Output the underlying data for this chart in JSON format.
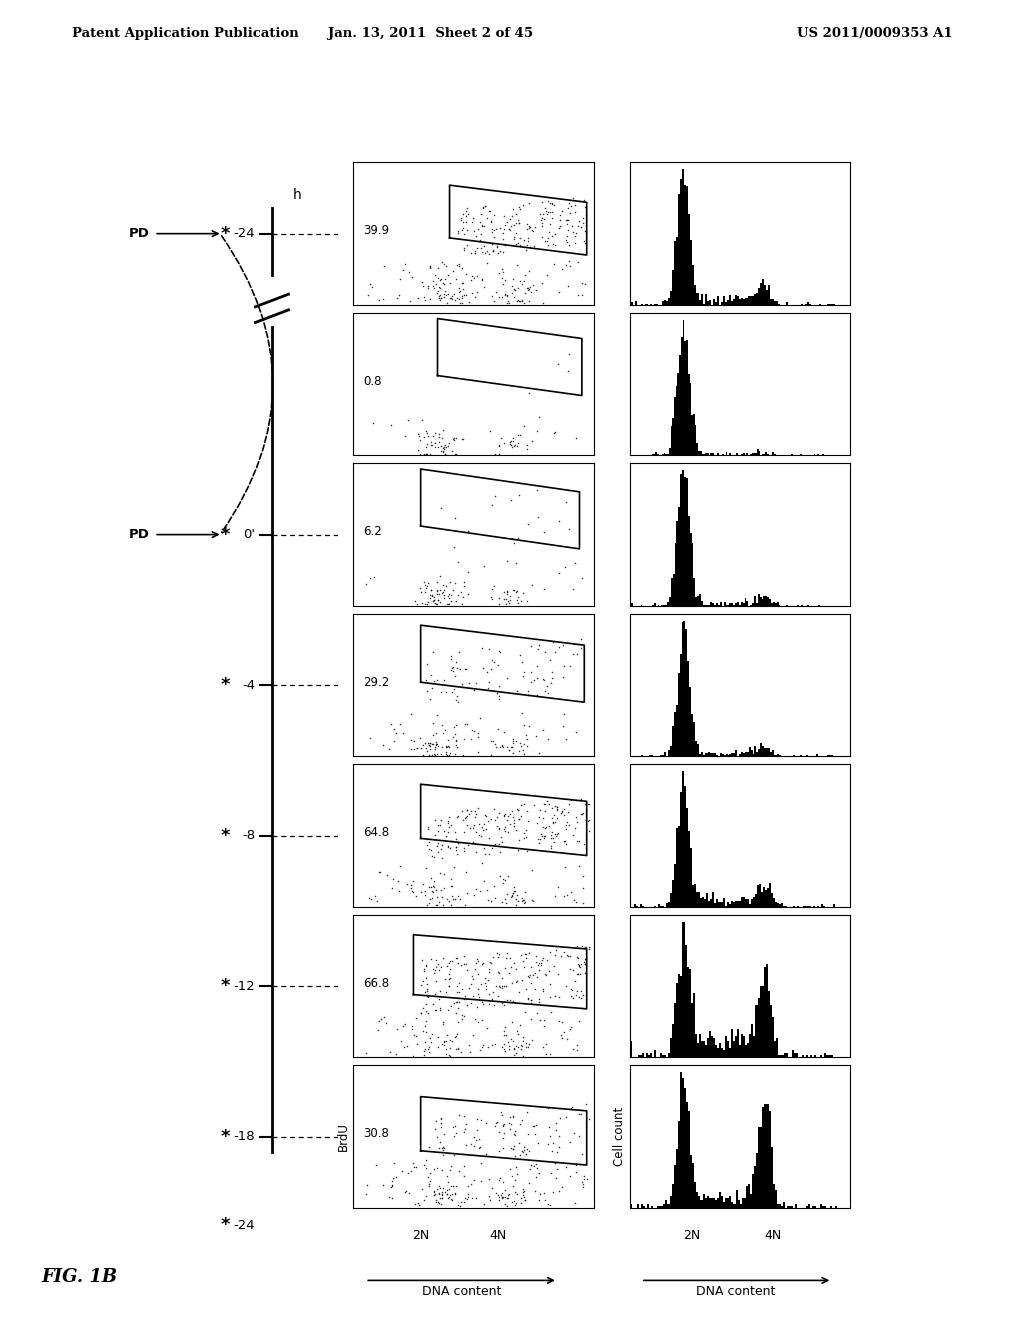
{
  "header_left": "Patent Application Publication",
  "header_mid": "Jan. 13, 2011  Sheet 2 of 45",
  "header_right": "US 2011/0009353 A1",
  "fig_label": "FIG. 1B",
  "scatter_labels": [
    "39.9",
    "0.8",
    "6.2",
    "29.2",
    "64.8",
    "66.8",
    "30.8"
  ],
  "time_labels_right": [
    "-24",
    "",
    "0'",
    "-4",
    "-8",
    "-12",
    "-18",
    "-24"
  ],
  "x_tick_labels": [
    "2N",
    "4N"
  ],
  "x_axis_label": "DNA content",
  "y_axis_label_scatter": "BrdU",
  "y_axis_label_hist": "Cell count",
  "bg_color": "#ffffff"
}
